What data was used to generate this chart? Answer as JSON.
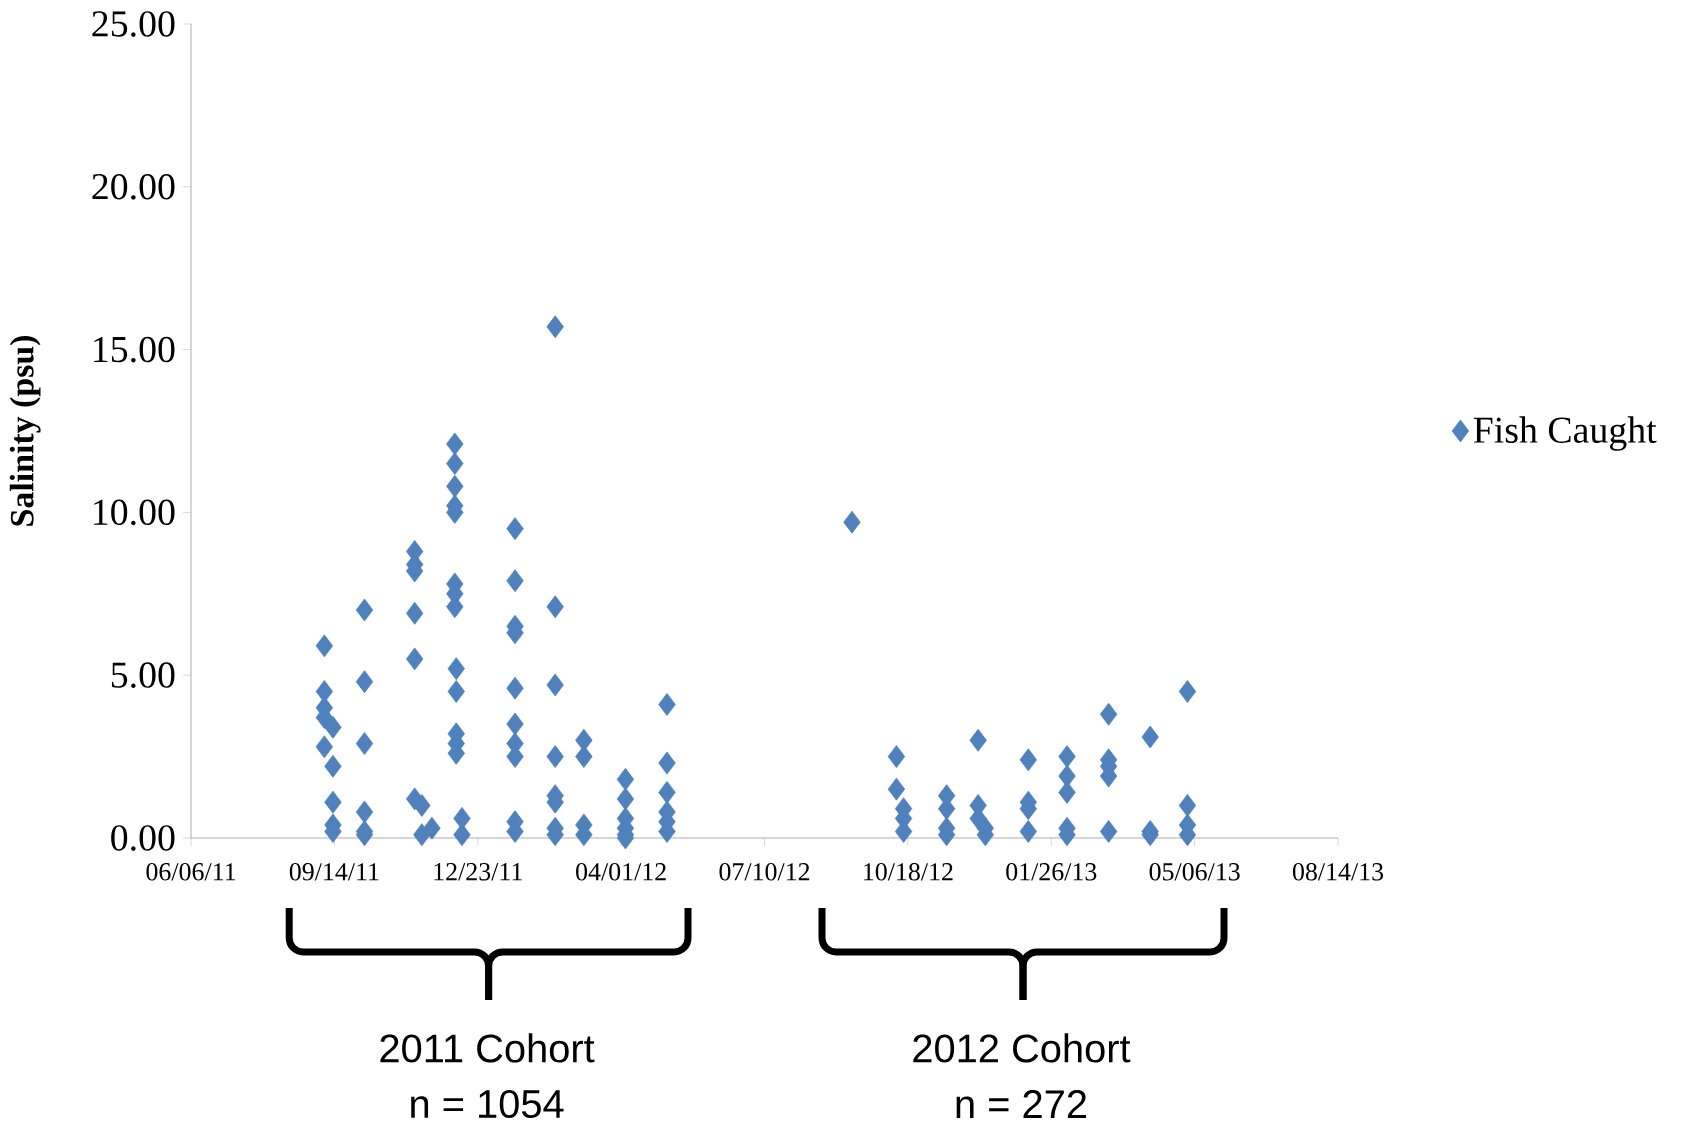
{
  "chart_data": {
    "type": "scatter",
    "ylabel": "Salinity (psu)",
    "xlim": [
      "2011-06-06",
      "2013-08-14"
    ],
    "xticks": [
      {
        "value": "2011-06-06",
        "label": "06/06/11"
      },
      {
        "value": "2011-09-14",
        "label": "09/14/11"
      },
      {
        "value": "2011-12-23",
        "label": "12/23/11"
      },
      {
        "value": "2012-04-01",
        "label": "04/01/12"
      },
      {
        "value": "2012-07-10",
        "label": "07/10/12"
      },
      {
        "value": "2012-10-18",
        "label": "10/18/12"
      },
      {
        "value": "2013-01-26",
        "label": "01/26/13"
      },
      {
        "value": "2013-05-06",
        "label": "05/06/13"
      },
      {
        "value": "2013-08-14",
        "label": "08/14/13"
      }
    ],
    "ylim": [
      0,
      25
    ],
    "yticks": [
      {
        "value": 0,
        "label": "0.00"
      },
      {
        "value": 5,
        "label": "5.00"
      },
      {
        "value": 10,
        "label": "10.00"
      },
      {
        "value": 15,
        "label": "15.00"
      },
      {
        "value": 20,
        "label": "20.00"
      },
      {
        "value": 25,
        "label": "25.00"
      }
    ],
    "legend": "right",
    "marker": "diamond",
    "grid": false,
    "annotations": [
      "2011 Cohort",
      "n = 1054",
      "2012 Cohort",
      "n = 272"
    ],
    "series": [
      {
        "name": "Fish Caught",
        "color": "#4f81bd",
        "x": [
          "2011-09-07",
          "2011-09-07",
          "2011-09-07",
          "2011-09-07",
          "2011-09-07",
          "2011-09-13",
          "2011-09-13",
          "2011-09-13",
          "2011-09-13",
          "2011-09-13",
          "2011-10-05",
          "2011-10-05",
          "2011-10-05",
          "2011-10-05",
          "2011-10-05",
          "2011-10-05",
          "2011-11-09",
          "2011-11-09",
          "2011-11-09",
          "2011-11-09",
          "2011-11-09",
          "2011-11-09",
          "2011-11-14",
          "2011-11-14",
          "2011-11-21",
          "2011-12-07",
          "2011-12-07",
          "2011-12-07",
          "2011-12-07",
          "2011-12-07",
          "2011-12-07",
          "2011-12-07",
          "2011-12-07",
          "2011-12-08",
          "2011-12-08",
          "2011-12-08",
          "2011-12-08",
          "2011-12-08",
          "2011-12-12",
          "2011-12-12",
          "2012-01-18",
          "2012-01-18",
          "2012-01-18",
          "2012-01-18",
          "2012-01-18",
          "2012-01-18",
          "2012-01-18",
          "2012-01-18",
          "2012-01-18",
          "2012-01-18",
          "2012-02-15",
          "2012-02-15",
          "2012-02-15",
          "2012-02-15",
          "2012-02-15",
          "2012-02-15",
          "2012-02-15",
          "2012-02-15",
          "2012-03-06",
          "2012-03-06",
          "2012-03-06",
          "2012-03-06",
          "2012-04-04",
          "2012-04-04",
          "2012-04-04",
          "2012-04-04",
          "2012-04-04",
          "2012-04-04",
          "2012-05-03",
          "2012-05-03",
          "2012-05-03",
          "2012-05-03",
          "2012-05-03",
          "2012-05-03",
          "2012-09-09",
          "2012-10-10",
          "2012-10-10",
          "2012-10-15",
          "2012-10-15",
          "2012-10-15",
          "2012-11-14",
          "2012-11-14",
          "2012-11-14",
          "2012-11-14",
          "2012-12-06",
          "2012-12-06",
          "2012-12-06",
          "2012-12-11",
          "2012-12-11",
          "2013-01-10",
          "2013-01-10",
          "2013-01-10",
          "2013-01-10",
          "2013-02-06",
          "2013-02-06",
          "2013-02-06",
          "2013-02-06",
          "2013-02-06",
          "2013-03-07",
          "2013-03-07",
          "2013-03-07",
          "2013-03-07",
          "2013-03-07",
          "2013-04-05",
          "2013-04-05",
          "2013-04-05",
          "2013-05-01",
          "2013-05-01",
          "2013-05-01",
          "2013-05-01"
        ],
        "values": [
          5.9,
          4.5,
          4.0,
          3.7,
          2.8,
          3.4,
          2.2,
          1.1,
          0.4,
          0.2,
          7.0,
          4.8,
          2.9,
          0.8,
          0.2,
          0.1,
          8.8,
          8.4,
          8.2,
          6.9,
          5.5,
          1.2,
          1.0,
          0.1,
          0.3,
          12.1,
          11.5,
          10.8,
          10.2,
          10.0,
          7.8,
          7.5,
          7.1,
          5.2,
          4.5,
          3.2,
          2.9,
          2.6,
          0.6,
          0.1,
          9.5,
          7.9,
          6.5,
          6.3,
          4.6,
          3.5,
          2.9,
          2.5,
          0.5,
          0.2,
          15.7,
          7.1,
          4.7,
          2.5,
          1.3,
          1.1,
          0.3,
          0.1,
          3.0,
          2.5,
          0.4,
          0.1,
          1.8,
          1.2,
          0.6,
          0.3,
          0.1,
          0.0,
          4.1,
          2.3,
          1.4,
          0.8,
          0.5,
          0.2,
          9.7,
          2.5,
          1.5,
          0.9,
          0.6,
          0.2,
          1.3,
          0.9,
          0.3,
          0.1,
          3.0,
          1.0,
          0.6,
          0.3,
          0.1,
          2.4,
          1.1,
          0.9,
          0.2,
          2.5,
          1.9,
          1.4,
          0.3,
          0.1,
          3.8,
          2.4,
          2.2,
          1.9,
          0.2,
          3.1,
          0.2,
          0.1,
          4.5,
          1.0,
          0.4,
          0.1
        ]
      }
    ]
  }
}
